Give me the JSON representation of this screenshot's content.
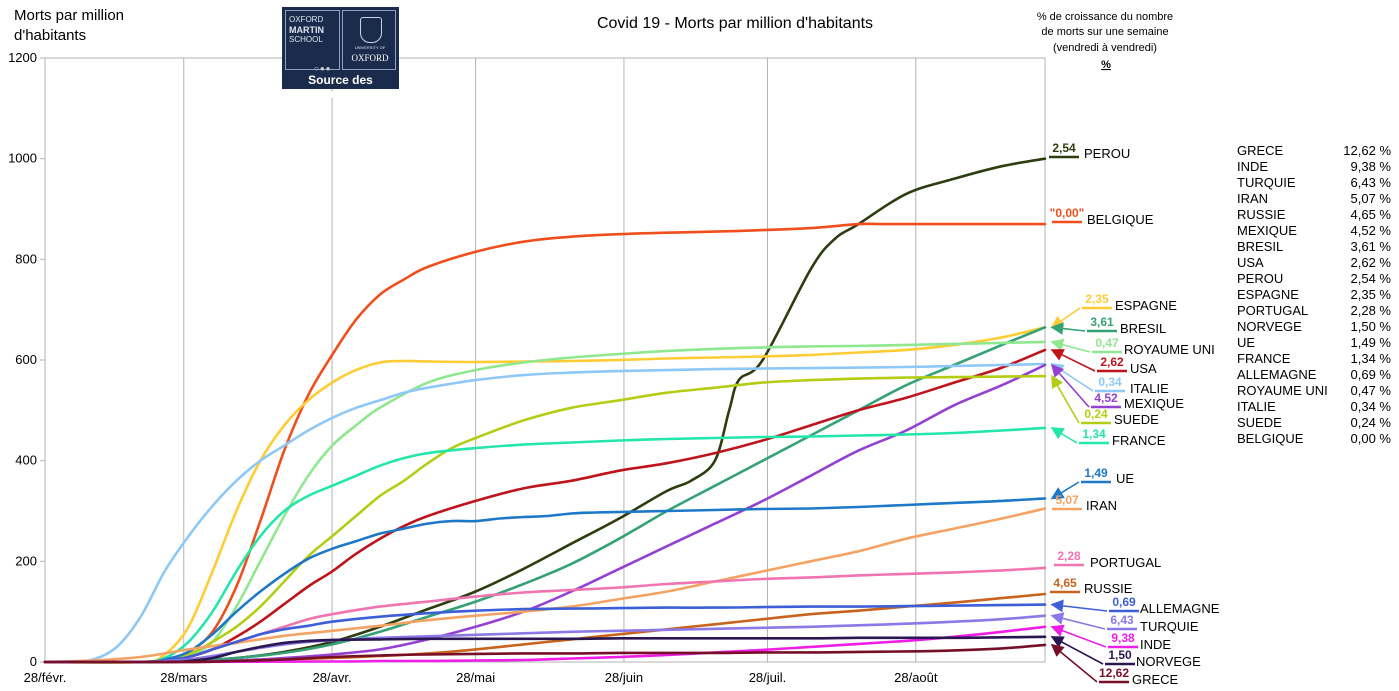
{
  "title": "Covid 19 - Morts par million d'habitants",
  "ylabel": [
    "Morts par million",
    "d'habitants"
  ],
  "right_header": [
    "% de croissance du nombre",
    "de morts sur une semaine",
    "(vendredi à vendredi)",
    "%"
  ],
  "logo": {
    "left_lines": [
      "OXFORD",
      "MARTIN",
      "SCHOOL"
    ],
    "crest_text": "UNIVERSITY OF",
    "right_text": "OXFORD",
    "caption": "Source des données"
  },
  "growth_table": [
    {
      "country": "GRECE",
      "pct": "12,62 %"
    },
    {
      "country": "INDE",
      "pct": "9,38 %"
    },
    {
      "country": "TURQUIE",
      "pct": "6,43 %"
    },
    {
      "country": "IRAN",
      "pct": "5,07 %"
    },
    {
      "country": "RUSSIE",
      "pct": "4,65 %"
    },
    {
      "country": "MEXIQUE",
      "pct": "4,52 %"
    },
    {
      "country": "BRESIL",
      "pct": "3,61 %"
    },
    {
      "country": "USA",
      "pct": "2,62 %"
    },
    {
      "country": "PEROU",
      "pct": "2,54 %"
    },
    {
      "country": "ESPAGNE",
      "pct": "2,35 %"
    },
    {
      "country": "PORTUGAL",
      "pct": "2,28 %"
    },
    {
      "country": "NORVEGE",
      "pct": "1,50 %"
    },
    {
      "country": "UE",
      "pct": "1,49 %"
    },
    {
      "country": "FRANCE",
      "pct": "1,34 %"
    },
    {
      "country": "ALLEMAGNE",
      "pct": "0,69 %"
    },
    {
      "country": "ROYAUME UNI",
      "pct": "0,47 %"
    },
    {
      "country": "ITALIE",
      "pct": "0,34 %"
    },
    {
      "country": "SUEDE",
      "pct": "0,24 %"
    },
    {
      "country": "BELGIQUE",
      "pct": "0,00 %"
    }
  ],
  "chart_data": {
    "type": "line",
    "title": "Covid 19 - Morts par million d'habitants",
    "ylabel": "Morts par million d'habitants",
    "xlabel": "",
    "ylim": [
      0,
      1200
    ],
    "yticks": [
      0,
      200,
      400,
      600,
      800,
      1000,
      1200
    ],
    "x_tick_labels": [
      "28/févr.",
      "28/mars",
      "28/avr.",
      "28/mai",
      "28/juin",
      "28/juil.",
      "28/août"
    ],
    "x_tick_days": [
      0,
      29,
      60,
      90,
      121,
      151,
      182
    ],
    "x_range_days": [
      0,
      209
    ],
    "grid": "vertical lines only",
    "series": [
      {
        "name": "PEROU",
        "growth": "2,54",
        "color": "#2e3d0f",
        "x": [
          0,
          20,
          30,
          40,
          50,
          60,
          70,
          80,
          90,
          100,
          110,
          120,
          130,
          135,
          140,
          143,
          145,
          150,
          160,
          165,
          170,
          180,
          190,
          200,
          209
        ],
        "y": [
          0,
          0,
          2,
          8,
          20,
          40,
          70,
          105,
          140,
          185,
          235,
          285,
          340,
          360,
          400,
          500,
          560,
          600,
          780,
          840,
          870,
          930,
          960,
          985,
          1000
        ]
      },
      {
        "name": "BELGIQUE",
        "growth": "\"0,00\"",
        "color": "#f04e1c",
        "x": [
          0,
          20,
          25,
          30,
          35,
          40,
          45,
          50,
          55,
          60,
          65,
          70,
          75,
          80,
          90,
          100,
          110,
          120,
          130,
          140,
          150,
          160,
          170,
          175,
          180,
          190,
          200,
          209
        ],
        "y": [
          0,
          0,
          5,
          20,
          60,
          150,
          280,
          420,
          530,
          610,
          680,
          730,
          760,
          785,
          815,
          835,
          845,
          850,
          853,
          855,
          858,
          862,
          870,
          870,
          870,
          870,
          870,
          870
        ]
      },
      {
        "name": "ESPAGNE",
        "growth": "2,35",
        "color": "#ffcc33",
        "x": [
          0,
          20,
          25,
          30,
          35,
          40,
          45,
          50,
          55,
          60,
          65,
          70,
          75,
          80,
          90,
          100,
          110,
          120,
          130,
          140,
          150,
          160,
          170,
          180,
          190,
          200,
          209
        ],
        "y": [
          0,
          0,
          15,
          70,
          180,
          300,
          400,
          470,
          520,
          555,
          580,
          595,
          598,
          597,
          596,
          597,
          598,
          600,
          603,
          605,
          607,
          610,
          615,
          620,
          630,
          645,
          665
        ]
      },
      {
        "name": "BRESIL",
        "growth": "3,61",
        "color": "#35a275",
        "x": [
          0,
          20,
          30,
          40,
          50,
          60,
          70,
          80,
          90,
          100,
          110,
          120,
          130,
          140,
          150,
          160,
          170,
          180,
          190,
          200,
          209
        ],
        "y": [
          0,
          0,
          3,
          8,
          18,
          35,
          60,
          90,
          120,
          155,
          195,
          245,
          300,
          350,
          400,
          450,
          500,
          550,
          590,
          630,
          665
        ]
      },
      {
        "name": "ROYAUME UNI",
        "growth": "0,47",
        "color": "#8fe88f",
        "x": [
          0,
          20,
          25,
          30,
          35,
          40,
          45,
          50,
          55,
          60,
          65,
          70,
          80,
          90,
          100,
          110,
          120,
          130,
          140,
          150,
          160,
          170,
          180,
          190,
          200,
          209
        ],
        "y": [
          0,
          0,
          3,
          12,
          40,
          110,
          200,
          290,
          370,
          430,
          470,
          505,
          555,
          580,
          595,
          605,
          612,
          618,
          622,
          625,
          627,
          628,
          630,
          632,
          634,
          636
        ]
      },
      {
        "name": "USA",
        "growth": "2,62",
        "color": "#c0141c",
        "x": [
          0,
          20,
          25,
          30,
          35,
          40,
          45,
          50,
          55,
          60,
          65,
          70,
          75,
          80,
          90,
          100,
          110,
          120,
          130,
          140,
          150,
          160,
          170,
          180,
          190,
          200,
          209
        ],
        "y": [
          0,
          0,
          3,
          10,
          25,
          50,
          80,
          115,
          150,
          180,
          215,
          245,
          270,
          290,
          320,
          345,
          360,
          380,
          395,
          415,
          440,
          470,
          500,
          525,
          555,
          585,
          620
        ]
      },
      {
        "name": "ITALIE",
        "growth": "0,34",
        "color": "#8ec8f6",
        "x": [
          0,
          5,
          10,
          15,
          20,
          25,
          30,
          35,
          40,
          45,
          50,
          55,
          60,
          65,
          70,
          75,
          80,
          90,
          100,
          110,
          120,
          130,
          140,
          150,
          160,
          170,
          180,
          190,
          200,
          209
        ],
        "y": [
          0,
          0,
          5,
          30,
          90,
          180,
          250,
          310,
          360,
          400,
          430,
          460,
          485,
          505,
          520,
          535,
          545,
          560,
          570,
          575,
          578,
          580,
          582,
          583,
          584,
          585,
          586,
          588,
          590,
          592
        ]
      },
      {
        "name": "MEXIQUE",
        "growth": "4,52",
        "color": "#9440d0",
        "x": [
          0,
          20,
          30,
          40,
          50,
          60,
          70,
          80,
          90,
          100,
          110,
          120,
          130,
          140,
          150,
          160,
          170,
          180,
          190,
          200,
          209
        ],
        "y": [
          0,
          0,
          1,
          3,
          8,
          15,
          25,
          45,
          70,
          100,
          140,
          185,
          230,
          275,
          320,
          370,
          420,
          460,
          510,
          550,
          590
        ]
      },
      {
        "name": "SUEDE",
        "growth": "0,24",
        "color": "#b4cd14",
        "x": [
          0,
          20,
          25,
          30,
          35,
          40,
          45,
          50,
          55,
          60,
          65,
          70,
          75,
          80,
          85,
          90,
          100,
          110,
          120,
          130,
          140,
          150,
          160,
          170,
          180,
          190,
          200,
          209
        ],
        "y": [
          0,
          0,
          5,
          15,
          40,
          70,
          110,
          160,
          210,
          250,
          290,
          330,
          360,
          395,
          425,
          445,
          480,
          505,
          520,
          535,
          545,
          555,
          560,
          563,
          565,
          566,
          567,
          568
        ]
      },
      {
        "name": "FRANCE",
        "growth": "1,34",
        "color": "#22e6aa",
        "x": [
          0,
          20,
          25,
          30,
          35,
          40,
          45,
          50,
          55,
          60,
          65,
          70,
          75,
          80,
          90,
          100,
          110,
          120,
          130,
          140,
          150,
          160,
          170,
          180,
          190,
          200,
          209
        ],
        "y": [
          0,
          0,
          8,
          40,
          100,
          180,
          250,
          300,
          330,
          350,
          370,
          390,
          405,
          415,
          425,
          432,
          436,
          440,
          443,
          445,
          447,
          448,
          450,
          452,
          455,
          460,
          465
        ]
      },
      {
        "name": "UE",
        "growth": "1,49",
        "color": "#1e78c8",
        "x": [
          0,
          20,
          25,
          30,
          35,
          40,
          45,
          50,
          55,
          60,
          65,
          70,
          75,
          80,
          85,
          90,
          95,
          100,
          105,
          110,
          115,
          120,
          130,
          140,
          150,
          160,
          170,
          180,
          190,
          200,
          209
        ],
        "y": [
          0,
          0,
          5,
          20,
          55,
          100,
          140,
          175,
          205,
          225,
          240,
          255,
          265,
          275,
          280,
          280,
          285,
          288,
          290,
          295,
          297,
          298,
          300,
          302,
          304,
          305,
          308,
          312,
          316,
          320,
          325
        ]
      },
      {
        "name": "IRAN",
        "growth": "5,07",
        "color": "#f5a364",
        "x": [
          0,
          10,
          20,
          30,
          40,
          50,
          60,
          70,
          80,
          90,
          100,
          110,
          120,
          130,
          140,
          150,
          160,
          170,
          180,
          190,
          200,
          209
        ],
        "y": [
          0,
          3,
          10,
          25,
          38,
          52,
          62,
          72,
          83,
          92,
          100,
          110,
          125,
          140,
          160,
          180,
          200,
          220,
          245,
          265,
          285,
          305
        ]
      },
      {
        "name": "PORTUGAL",
        "growth": "2,28",
        "color": "#f074b0",
        "x": [
          0,
          20,
          25,
          30,
          35,
          40,
          45,
          50,
          55,
          60,
          70,
          80,
          90,
          100,
          110,
          120,
          130,
          140,
          150,
          160,
          170,
          180,
          190,
          200,
          209
        ],
        "y": [
          0,
          0,
          2,
          10,
          25,
          40,
          55,
          70,
          85,
          95,
          110,
          120,
          130,
          138,
          143,
          148,
          155,
          160,
          165,
          168,
          172,
          175,
          178,
          182,
          187
        ]
      },
      {
        "name": "RUSSIE",
        "growth": "4,65",
        "color": "#c8641e",
        "x": [
          0,
          30,
          40,
          50,
          60,
          70,
          80,
          90,
          100,
          110,
          120,
          130,
          140,
          150,
          160,
          170,
          180,
          190,
          200,
          209
        ],
        "y": [
          0,
          0,
          2,
          5,
          8,
          12,
          17,
          25,
          35,
          45,
          55,
          65,
          75,
          85,
          95,
          102,
          110,
          118,
          127,
          135
        ]
      },
      {
        "name": "ALLEMAGNE",
        "growth": "0,69",
        "color": "#3c5fd8",
        "x": [
          0,
          20,
          25,
          30,
          35,
          40,
          45,
          50,
          55,
          60,
          70,
          80,
          90,
          100,
          110,
          120,
          130,
          140,
          150,
          160,
          170,
          180,
          190,
          200,
          209
        ],
        "y": [
          0,
          0,
          3,
          10,
          25,
          40,
          55,
          65,
          72,
          80,
          90,
          97,
          102,
          105,
          106,
          107,
          108,
          108,
          109,
          110,
          110,
          111,
          112,
          113,
          114
        ]
      },
      {
        "name": "TURQUIE",
        "growth": "6,43",
        "color": "#8c78e6",
        "x": [
          0,
          20,
          25,
          30,
          35,
          40,
          45,
          50,
          55,
          60,
          70,
          80,
          90,
          100,
          110,
          120,
          130,
          140,
          150,
          160,
          170,
          180,
          190,
          200,
          209
        ],
        "y": [
          0,
          0,
          2,
          5,
          12,
          20,
          28,
          35,
          40,
          43,
          48,
          51,
          54,
          57,
          60,
          62,
          64,
          66,
          68,
          70,
          73,
          76,
          80,
          85,
          92
        ]
      },
      {
        "name": "INDE",
        "growth": "9,38",
        "color": "#ee1ee6",
        "x": [
          0,
          60,
          70,
          80,
          90,
          100,
          110,
          120,
          130,
          140,
          150,
          160,
          170,
          180,
          190,
          200,
          209
        ],
        "y": [
          0,
          1,
          2,
          2,
          3,
          4,
          7,
          10,
          14,
          19,
          24,
          30,
          36,
          42,
          50,
          60,
          70
        ]
      },
      {
        "name": "NORVEGE",
        "growth": "1,50",
        "color": "#2a1650",
        "x": [
          0,
          25,
          30,
          35,
          40,
          45,
          50,
          55,
          60,
          70,
          80,
          90,
          100,
          110,
          120,
          130,
          140,
          150,
          160,
          170,
          180,
          190,
          200,
          209
        ],
        "y": [
          0,
          0,
          2,
          8,
          20,
          30,
          38,
          42,
          44,
          45,
          46,
          46,
          46,
          46,
          47,
          47,
          47,
          47,
          47,
          48,
          48,
          48,
          49,
          50
        ]
      },
      {
        "name": "GRECE",
        "growth": "12,62",
        "color": "#780f28",
        "x": [
          0,
          30,
          40,
          50,
          60,
          70,
          80,
          90,
          100,
          110,
          120,
          130,
          140,
          150,
          160,
          170,
          180,
          190,
          200,
          209
        ],
        "y": [
          0,
          0,
          2,
          5,
          10,
          13,
          15,
          16,
          17,
          17,
          18,
          18,
          18,
          19,
          19,
          20,
          21,
          23,
          27,
          34
        ]
      }
    ]
  }
}
